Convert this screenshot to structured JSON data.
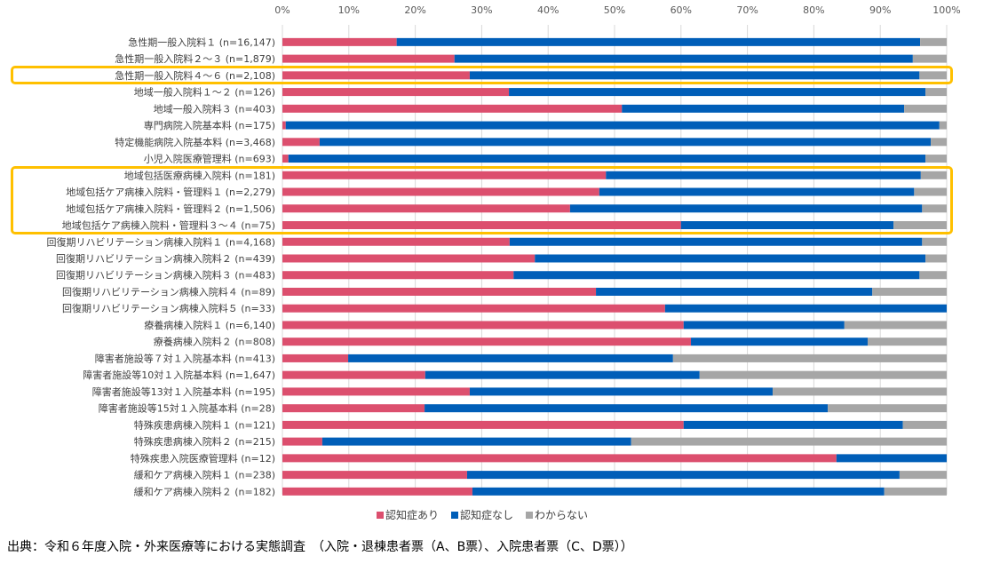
{
  "chart_data": {
    "type": "bar",
    "orientation": "horizontal",
    "stacked": true,
    "percent": true,
    "title": "",
    "xlabel": "",
    "ylabel": "",
    "xlim": [
      0,
      100
    ],
    "x_ticks": [
      "0%",
      "10%",
      "20%",
      "30%",
      "40%",
      "50%",
      "60%",
      "70%",
      "80%",
      "90%",
      "100%"
    ],
    "grid": true,
    "legend_position": "bottom",
    "categories": [
      "急性期一般入院料１ (n=16,147)",
      "急性期一般入院料２～３ (n=1,879)",
      "急性期一般入院料４～６ (n=2,108)",
      "地域一般入院料１～２ (n=126)",
      "地域一般入院料３ (n=403)",
      "専門病院入院基本料 (n=175)",
      "特定機能病院入院基本料 (n=3,468)",
      "小児入院医療管理料 (n=693)",
      "地域包括医療病棟入院料 (n=181)",
      "地域包括ケア病棟入院料・管理料１ (n=2,279)",
      "地域包括ケア病棟入院料・管理料２ (n=1,506)",
      "地域包括ケア病棟入院料・管理料３～４ (n=75)",
      "回復期リハビリテーション病棟入院料１ (n=4,168)",
      "回復期リハビリテーション病棟入院料２ (n=439)",
      "回復期リハビリテーション病棟入院料３ (n=483)",
      "回復期リハビリテーション病棟入院料４ (n=89)",
      "回復期リハビリテーション病棟入院料５ (n=33)",
      "療養病棟入院料１ (n=6,140)",
      "療養病棟入院料２ (n=808)",
      "障害者施設等７対１入院基本料 (n=413)",
      "障害者施設等10対１入院基本料 (n=1,647)",
      "障害者施設等13対１入院基本料 (n=195)",
      "障害者施設等15対１入院基本料 (n=28)",
      "特殊疾患病棟入院料１ (n=121)",
      "特殊疾患病棟入院料２ (n=215)",
      "特殊疾患入院医療管理料 (n=12)",
      "緩和ケア病棟入院料１ (n=238)",
      "緩和ケア病棟入院料２ (n=182)"
    ],
    "series": [
      {
        "name": "認知症あり",
        "color": "#DC4F6E",
        "values": [
          17.2,
          25.9,
          28.2,
          34.1,
          51.1,
          0.5,
          5.6,
          0.9,
          48.7,
          47.7,
          43.3,
          60.0,
          34.2,
          38.0,
          34.8,
          47.2,
          57.6,
          60.4,
          61.5,
          9.9,
          21.5,
          28.2,
          21.4,
          60.4,
          6.0,
          83.4,
          27.8,
          28.6
        ]
      },
      {
        "name": "認知症なし",
        "color": "#005EB8",
        "values": [
          78.8,
          69.0,
          67.7,
          62.7,
          42.5,
          98.4,
          92.0,
          95.9,
          47.4,
          47.4,
          53.0,
          32.0,
          62.1,
          58.8,
          61.1,
          41.6,
          42.4,
          24.2,
          26.6,
          48.9,
          41.3,
          45.6,
          60.7,
          33.0,
          46.5,
          16.6,
          65.1,
          62.0
        ]
      },
      {
        "name": "わからない",
        "color": "#A6A6A6",
        "values": [
          4.0,
          5.1,
          4.1,
          3.2,
          6.4,
          1.1,
          2.4,
          3.2,
          3.9,
          4.9,
          3.7,
          8.0,
          3.7,
          3.2,
          4.1,
          11.2,
          0.0,
          15.4,
          11.9,
          41.2,
          37.2,
          26.2,
          17.9,
          6.6,
          47.5,
          0.0,
          7.1,
          9.4
        ]
      }
    ],
    "highlighted_groups": [
      [
        "急性期一般入院料４～６ (n=2,108)"
      ],
      [
        "地域包括医療病棟入院料 (n=181)",
        "地域包括ケア病棟入院料・管理料１ (n=2,279)",
        "地域包括ケア病棟入院料・管理料２ (n=1,506)",
        "地域包括ケア病棟入院料・管理料３～４ (n=75)"
      ]
    ],
    "highlight_color": "#FFC000"
  },
  "source_note": "出典：令和６年度入院・外来医療等における実態調査　（入院・退棟患者票（A、B票）、入院患者票（C、D票））"
}
